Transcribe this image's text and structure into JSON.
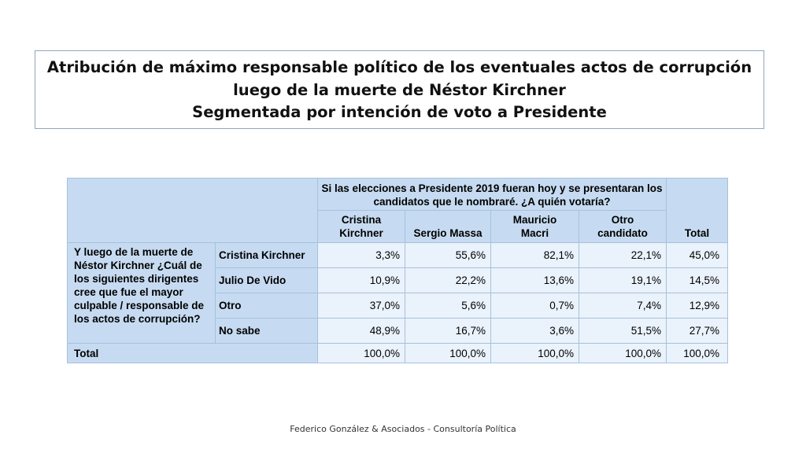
{
  "title": {
    "line1": "Atribución de máximo responsable político de los eventuales actos de corrupción",
    "line2": "luego de la muerte de Néstor Kirchner",
    "line3": "Segmentada por intención de voto a Presidente"
  },
  "table": {
    "question_header": "Si las elecciones a Presidente 2019 fueran hoy y se presentaran los candidatos que le nombraré. ¿A quién votaría?",
    "columns": [
      "Cristina Kirchner",
      "Sergio Massa",
      "Mauricio Macri",
      "Otro candidato"
    ],
    "total_column": "Total",
    "row_question": "Y luego de la muerte de Néstor Kirchner ¿Cuál de los siguientes dirigentes cree que fue el mayor culpable / responsable de los actos de corrupción?",
    "rows": [
      {
        "label": "Cristina Kirchner",
        "values": [
          "3,3%",
          "55,6%",
          "82,1%",
          "22,1%"
        ],
        "total": "45,0%"
      },
      {
        "label": "Julio De Vido",
        "values": [
          "10,9%",
          "22,2%",
          "13,6%",
          "19,1%"
        ],
        "total": "14,5%"
      },
      {
        "label": "Otro",
        "values": [
          "37,0%",
          "5,6%",
          "0,7%",
          "7,4%"
        ],
        "total": "12,9%"
      },
      {
        "label": "No sabe",
        "values": [
          "48,9%",
          "16,7%",
          "3,6%",
          "51,5%"
        ],
        "total": "27,7%"
      }
    ],
    "total_row": {
      "label": "Total",
      "values": [
        "100,0%",
        "100,0%",
        "100,0%",
        "100,0%"
      ],
      "total": "100,0%"
    }
  },
  "footer": "Federico González & Asociados - Consultoría Política"
}
